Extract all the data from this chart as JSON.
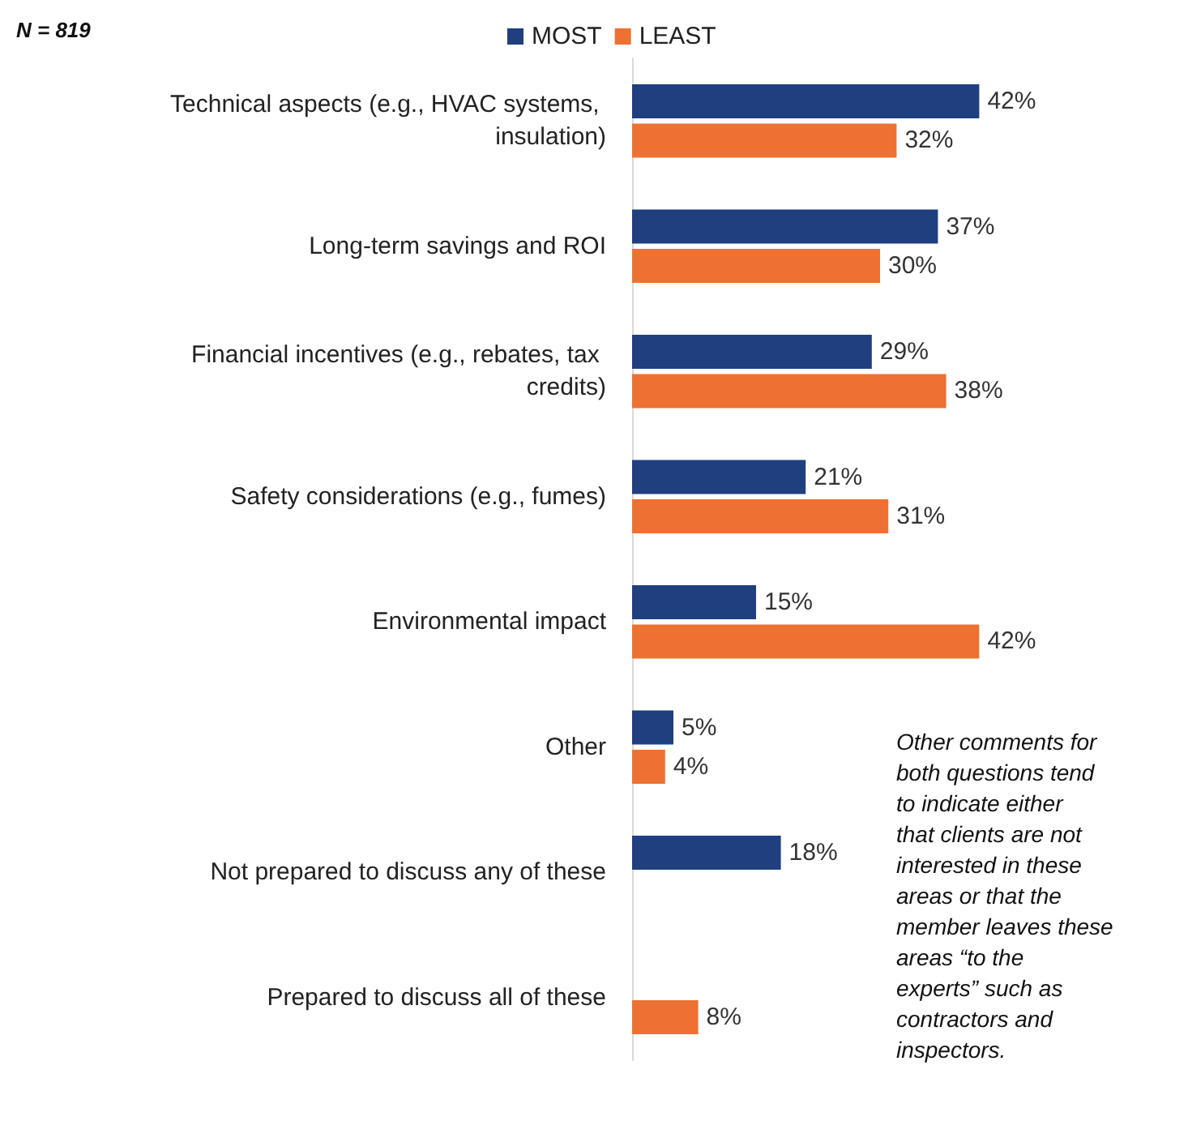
{
  "chart_data": {
    "type": "bar",
    "orientation": "horizontal",
    "legend": "top",
    "annotations": [
      "N = 819",
      "Other comments for both questions tend to indicate either that clients are not interested in these areas or that the member leaves these areas “to the experts” such as contractors and inspectors."
    ],
    "categories": [
      "Technical aspects (e.g., HVAC systems, insulation)",
      "Long-term savings and ROI",
      "Financial incentives (e.g., rebates, tax credits)",
      "Safety considerations (e.g., fumes)",
      "Environmental impact",
      "Other",
      "Not prepared to discuss any of these",
      "Prepared to discuss all of these"
    ],
    "series": [
      {
        "name": "MOST",
        "color": "#1f3f7f",
        "values": [
          42,
          37,
          29,
          21,
          15,
          5,
          18,
          null
        ],
        "value_labels": [
          "42%",
          "37%",
          "29%",
          "21%",
          "15%",
          "5%",
          "18%",
          null
        ]
      },
      {
        "name": "LEAST",
        "color": "#ed7133",
        "values": [
          32,
          30,
          38,
          31,
          42,
          4,
          null,
          8
        ],
        "value_labels": [
          "32%",
          "30%",
          "38%",
          "31%",
          "42%",
          "4%",
          null,
          "8%"
        ]
      }
    ]
  }
}
